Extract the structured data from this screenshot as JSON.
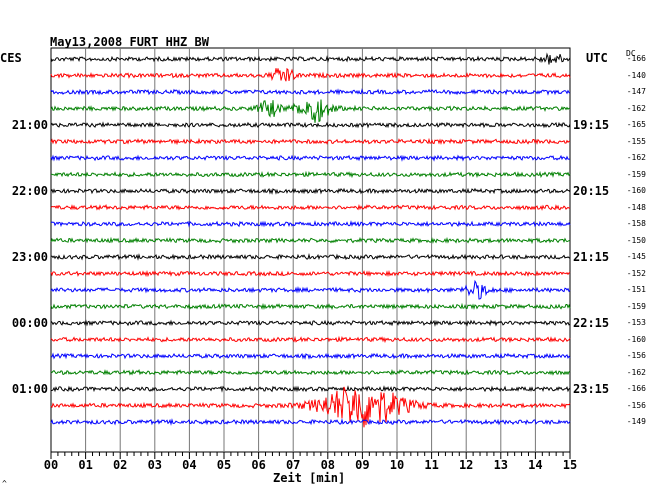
{
  "header": {
    "title": "May13,2008   FURT HHZ BW",
    "left_zone": "CES",
    "right_zone": "UTC",
    "dc_label": "DC"
  },
  "chart_data": {
    "type": "line",
    "title": "May13,2008   FURT HHZ BW",
    "xlabel": "Zeit [min]",
    "xlim": [
      0,
      15
    ],
    "x_ticks": [
      "00",
      "01",
      "02",
      "03",
      "04",
      "05",
      "06",
      "07",
      "08",
      "09",
      "10",
      "11",
      "12",
      "13",
      "14",
      "15"
    ],
    "left_time_labels": [
      "21:00",
      "22:00",
      "23:00",
      "00:00",
      "01:00"
    ],
    "right_time_labels": [
      "19:15",
      "20:15",
      "21:15",
      "22:15",
      "23:15"
    ],
    "dc_offsets": [
      "-166",
      "-140",
      "-147",
      "-162",
      "-165",
      "-155",
      "-162",
      "-159",
      "-160",
      "-148",
      "-158",
      "-150",
      "-145",
      "-152",
      "-151",
      "-159",
      "-153",
      "-160",
      "-156",
      "-162",
      "-166",
      "-156",
      "-149"
    ],
    "trace_colors": [
      "#000000",
      "#ff0000",
      "#0000ff",
      "#008000"
    ],
    "events": [
      {
        "trace": 0,
        "x_min": 14.5,
        "amplitude": "small"
      },
      {
        "trace": 1,
        "x_min": 6.7,
        "amplitude": "medium"
      },
      {
        "trace": 3,
        "x_min": 6.3,
        "amplitude": "medium"
      },
      {
        "trace": 3,
        "x_min": 7.6,
        "amplitude": "large"
      },
      {
        "trace": 14,
        "x_min": 12.3,
        "amplitude": "medium"
      },
      {
        "trace": 21,
        "x_min": 9.0,
        "amplitude": "very large"
      }
    ]
  },
  "footer": {
    "corner_mark": "^"
  }
}
